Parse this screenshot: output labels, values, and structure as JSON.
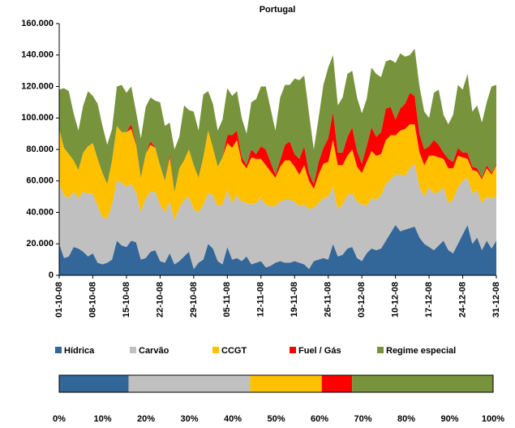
{
  "chart_data": [
    {
      "type": "area",
      "title": "Portugal",
      "categories": [
        "01-10-08",
        null,
        null,
        null,
        null,
        null,
        null,
        "08-10-08",
        null,
        null,
        null,
        null,
        null,
        null,
        "15-10-08",
        null,
        null,
        null,
        null,
        null,
        null,
        "22-10-08",
        null,
        null,
        null,
        null,
        null,
        null,
        "29-10-08",
        null,
        null,
        null,
        null,
        null,
        null,
        "05-11-08",
        null,
        null,
        null,
        null,
        null,
        null,
        "12-11-08",
        null,
        null,
        null,
        null,
        null,
        null,
        "19-11-08",
        null,
        null,
        null,
        null,
        null,
        null,
        "26-11-08",
        null,
        null,
        null,
        null,
        null,
        null,
        "03-12-08",
        null,
        null,
        null,
        null,
        null,
        null,
        "10-12-08",
        null,
        null,
        null,
        null,
        null,
        null,
        "17-12-08",
        null,
        null,
        null,
        null,
        null,
        null,
        "24-12-08",
        null,
        null,
        null,
        null,
        null,
        null,
        "31-12-08"
      ],
      "ylim": [
        0,
        160000
      ],
      "yticks": [
        {
          "value": 0,
          "label": "0"
        },
        {
          "value": 20000,
          "label": "20.000"
        },
        {
          "value": 40000,
          "label": "40.000"
        },
        {
          "value": 60000,
          "label": "60.000"
        },
        {
          "value": 80000,
          "label": "80.000"
        },
        {
          "value": 100000,
          "label": "100.000"
        },
        {
          "value": 120000,
          "label": "120.000"
        },
        {
          "value": 140000,
          "label": "140.000"
        },
        {
          "value": 160000,
          "label": "160.000"
        }
      ],
      "grid": false,
      "stacked": true,
      "series": [
        {
          "name": "Hídrica",
          "color": "#336699",
          "values": [
            20000,
            11000,
            12000,
            18000,
            17000,
            15000,
            12000,
            14000,
            8000,
            7000,
            8000,
            10000,
            22000,
            19000,
            18000,
            22000,
            21000,
            10000,
            11000,
            15000,
            16000,
            9000,
            8000,
            14000,
            7000,
            9000,
            12000,
            15000,
            4000,
            8000,
            10000,
            20000,
            17000,
            9000,
            7000,
            18000,
            10000,
            11000,
            9000,
            12000,
            7000,
            8000,
            9000,
            5000,
            6000,
            8000,
            9000,
            8000,
            8000,
            9000,
            8000,
            7000,
            4000,
            9000,
            10000,
            11000,
            10000,
            20000,
            12000,
            13000,
            17000,
            18000,
            11000,
            9000,
            14000,
            17000,
            16000,
            17000,
            22000,
            27000,
            32000,
            28000,
            29000,
            30000,
            31000,
            24000,
            20000,
            18000,
            16000,
            19000,
            22000,
            16000,
            14000,
            20000,
            26000,
            32000,
            20000,
            24000,
            16000,
            22000,
            17000,
            22000
          ]
        },
        {
          "name": "Carvão",
          "color": "#c0c0c0",
          "values": [
            38000,
            40000,
            37000,
            35000,
            32000,
            38000,
            40000,
            38000,
            36000,
            30000,
            28000,
            35000,
            38000,
            40000,
            38000,
            36000,
            32000,
            30000,
            38000,
            38000,
            37000,
            36000,
            32000,
            33000,
            28000,
            34000,
            36000,
            35000,
            38000,
            32000,
            35000,
            32000,
            34000,
            35000,
            38000,
            36000,
            36000,
            40000,
            38000,
            34000,
            38000,
            38000,
            40000,
            40000,
            38000,
            36000,
            38000,
            40000,
            40000,
            38000,
            36000,
            38000,
            38000,
            34000,
            36000,
            38000,
            40000,
            36000,
            30000,
            32000,
            34000,
            34000,
            36000,
            36000,
            30000,
            32000,
            32000,
            34000,
            36000,
            34000,
            32000,
            36000,
            34000,
            38000,
            40000,
            32000,
            30000,
            38000,
            36000,
            34000,
            34000,
            30000,
            34000,
            36000,
            34000,
            30000,
            32000,
            30000,
            30000,
            28000,
            32000,
            28000
          ]
        },
        {
          "name": "CCGT",
          "color": "#ffc000",
          "values": [
            35000,
            30000,
            28000,
            20000,
            18000,
            25000,
            30000,
            32000,
            30000,
            28000,
            22000,
            28000,
            35000,
            32000,
            35000,
            35000,
            30000,
            22000,
            28000,
            30000,
            28000,
            25000,
            20000,
            28000,
            18000,
            25000,
            25000,
            30000,
            28000,
            22000,
            30000,
            40000,
            30000,
            25000,
            30000,
            30000,
            35000,
            35000,
            25000,
            22000,
            30000,
            28000,
            25000,
            25000,
            22000,
            18000,
            22000,
            25000,
            25000,
            22000,
            20000,
            25000,
            18000,
            12000,
            18000,
            22000,
            22000,
            30000,
            28000,
            25000,
            25000,
            28000,
            22000,
            20000,
            28000,
            30000,
            28000,
            26000,
            28000,
            28000,
            25000,
            28000,
            30000,
            28000,
            25000,
            22000,
            20000,
            20000,
            24000,
            22000,
            18000,
            22000,
            20000,
            20000,
            15000,
            12000,
            15000,
            12000,
            15000,
            18000,
            15000,
            20000
          ]
        },
        {
          "name": "Fuel / Gás",
          "color": "#ff0000",
          "values": [
            0,
            0,
            0,
            0,
            0,
            0,
            0,
            0,
            0,
            0,
            0,
            0,
            0,
            0,
            0,
            3000,
            1000,
            0,
            0,
            2000,
            0,
            0,
            0,
            2000,
            0,
            0,
            0,
            0,
            0,
            0,
            0,
            0,
            0,
            0,
            0,
            5000,
            8000,
            6000,
            3000,
            2000,
            5000,
            3000,
            8000,
            10000,
            6000,
            2000,
            4000,
            10000,
            12000,
            8000,
            10000,
            12000,
            5000,
            3000,
            8000,
            10000,
            15000,
            18000,
            8000,
            8000,
            12000,
            14000,
            10000,
            6000,
            10000,
            15000,
            12000,
            14000,
            20000,
            18000,
            10000,
            14000,
            16000,
            20000,
            18000,
            12000,
            10000,
            6000,
            10000,
            8000,
            4000,
            6000,
            4000,
            5000,
            3000,
            4000,
            2000,
            2000,
            1000,
            2000,
            1000,
            1000
          ]
        },
        {
          "name": "Regime especial",
          "color": "#77933c",
          "values": [
            25000,
            38000,
            40000,
            30000,
            25000,
            30000,
            35000,
            30000,
            35000,
            30000,
            25000,
            20000,
            25000,
            30000,
            25000,
            24000,
            20000,
            25000,
            30000,
            28000,
            30000,
            40000,
            35000,
            20000,
            27000,
            20000,
            35000,
            25000,
            34000,
            30000,
            40000,
            25000,
            28000,
            23000,
            24000,
            30000,
            25000,
            25000,
            25000,
            20000,
            30000,
            35000,
            38000,
            40000,
            34000,
            28000,
            40000,
            38000,
            36000,
            48000,
            50000,
            45000,
            38000,
            22000,
            28000,
            40000,
            45000,
            36000,
            30000,
            35000,
            40000,
            36000,
            34000,
            32000,
            30000,
            38000,
            40000,
            35000,
            30000,
            30000,
            36000,
            35000,
            30000,
            24000,
            30000,
            30000,
            24000,
            18000,
            30000,
            35000,
            24000,
            22000,
            30000,
            40000,
            40000,
            50000,
            35000,
            40000,
            35000,
            40000,
            55000,
            50000
          ]
        }
      ]
    },
    {
      "type": "stacked-hbar",
      "values": [
        16,
        28,
        16.5,
        7,
        32.5
      ],
      "colors": [
        "#336699",
        "#c0c0c0",
        "#ffc000",
        "#ff0000",
        "#77933c"
      ],
      "xlim": [
        0,
        100
      ],
      "xticks": [
        {
          "value": 0,
          "label": "0%"
        },
        {
          "value": 10,
          "label": "10%"
        },
        {
          "value": 20,
          "label": "20%"
        },
        {
          "value": 30,
          "label": "30%"
        },
        {
          "value": 40,
          "label": "40%"
        },
        {
          "value": 50,
          "label": "50%"
        },
        {
          "value": 60,
          "label": "60%"
        },
        {
          "value": 70,
          "label": "70%"
        },
        {
          "value": 80,
          "label": "80%"
        },
        {
          "value": 90,
          "label": "90%"
        },
        {
          "value": 100,
          "label": "100%"
        }
      ]
    }
  ]
}
